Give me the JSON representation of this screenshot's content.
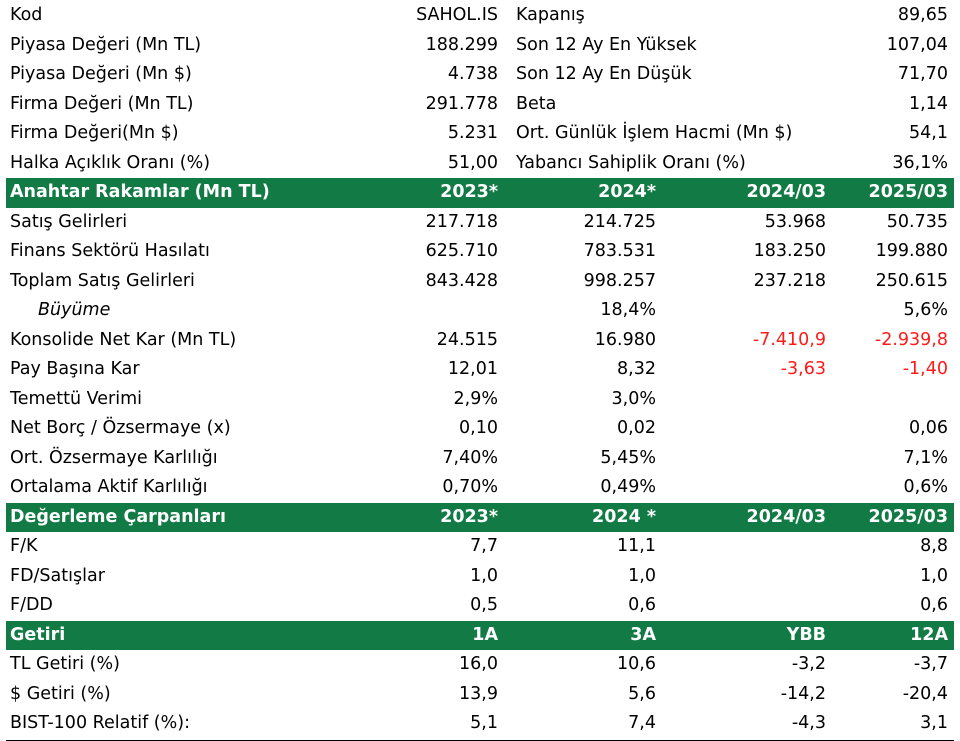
{
  "summary": [
    {
      "label": "Kod",
      "value": "SAHOL.IS",
      "label2": "Kapanış",
      "value2": "89,65"
    },
    {
      "label": "Piyasa Değeri (Mn TL)",
      "value": "188.299",
      "label2": "Son 12 Ay En Yüksek",
      "value2": "107,04"
    },
    {
      "label": "Piyasa Değeri (Mn $)",
      "value": "4.738",
      "label2": "Son 12 Ay En Düşük",
      "value2": "71,70"
    },
    {
      "label": "Firma Değeri (Mn TL)",
      "value": "291.778",
      "label2": "Beta",
      "value2": "1,14"
    },
    {
      "label": "Firma Değeri(Mn $)",
      "value": "5.231",
      "label2": "Ort. Günlük İşlem Hacmi (Mn $)",
      "value2": "54,1"
    },
    {
      "label": "Halka Açıklık Oranı (%)",
      "value": "51,00",
      "label2": "Yabancı Sahiplik Oranı (%)",
      "value2": "36,1%"
    }
  ],
  "key_figures": {
    "header": [
      "Anahtar Rakamlar (Mn TL)",
      "2023*",
      "2024*",
      "2024/03",
      "2025/03"
    ],
    "rows": [
      {
        "label": "Satış Gelirleri",
        "cells": [
          "217.718",
          "214.725",
          "53.968",
          "50.735"
        ]
      },
      {
        "label": "Finans Sektörü Hasılatı",
        "cells": [
          "625.710",
          "783.531",
          "183.250",
          "199.880"
        ]
      },
      {
        "label": "Toplam Satış Gelirleri",
        "cells": [
          "843.428",
          "998.257",
          "237.218",
          "250.615"
        ]
      },
      {
        "label": "Büyüme",
        "cells": [
          "",
          "18,4%",
          "",
          "5,6%"
        ]
      },
      {
        "label": "Konsolide Net Kar (Mn TL)",
        "cells": [
          "24.515",
          "16.980",
          "-7.410,9",
          "-2.939,8"
        ]
      },
      {
        "label": "Pay Başına Kar",
        "cells": [
          "12,01",
          "8,32",
          "-3,63",
          "-1,40"
        ]
      },
      {
        "label": "Temettü Verimi",
        "cells": [
          "2,9%",
          "3,0%",
          "",
          ""
        ]
      },
      {
        "label": "Net Borç / Özsermaye (x)",
        "cells": [
          "0,10",
          "0,02",
          "",
          "0,06"
        ]
      },
      {
        "label": "Ort. Özsermaye Karlılığı",
        "cells": [
          "7,40%",
          "5,45%",
          "",
          "7,1%"
        ]
      },
      {
        "label": "Ortalama Aktif Karlılığı",
        "cells": [
          "0,70%",
          "0,49%",
          "",
          "0,6%"
        ]
      }
    ]
  },
  "valuation": {
    "header": [
      "Değerleme Çarpanları",
      "2023*",
      "2024 *",
      "2024/03",
      "2025/03"
    ],
    "rows": [
      {
        "label": "F/K",
        "cells": [
          "7,7",
          "11,1",
          "",
          "8,8"
        ]
      },
      {
        "label": "FD/Satışlar",
        "cells": [
          "1,0",
          "1,0",
          "",
          "1,0"
        ]
      },
      {
        "label": "F/DD",
        "cells": [
          "0,5",
          "0,6",
          "",
          "0,6"
        ]
      }
    ]
  },
  "returns": {
    "header": [
      "Getiri",
      "1A",
      "3A",
      "YBB",
      "12A"
    ],
    "rows": [
      {
        "label": "TL Getiri (%)",
        "cells": [
          "16,0",
          "10,6",
          "-3,2",
          "-3,7"
        ]
      },
      {
        "label": "$ Getiri (%)",
        "cells": [
          "13,9",
          "5,6",
          "-14,2",
          "-20,4"
        ]
      },
      {
        "label": "BIST-100 Relatif (%):",
        "cells": [
          "5,1",
          "7,4",
          "-4,3",
          "3,1"
        ]
      }
    ]
  },
  "colors": {
    "header_bg": "#127a44",
    "header_text": "#ffffff",
    "negative": "#ff1a1a"
  }
}
